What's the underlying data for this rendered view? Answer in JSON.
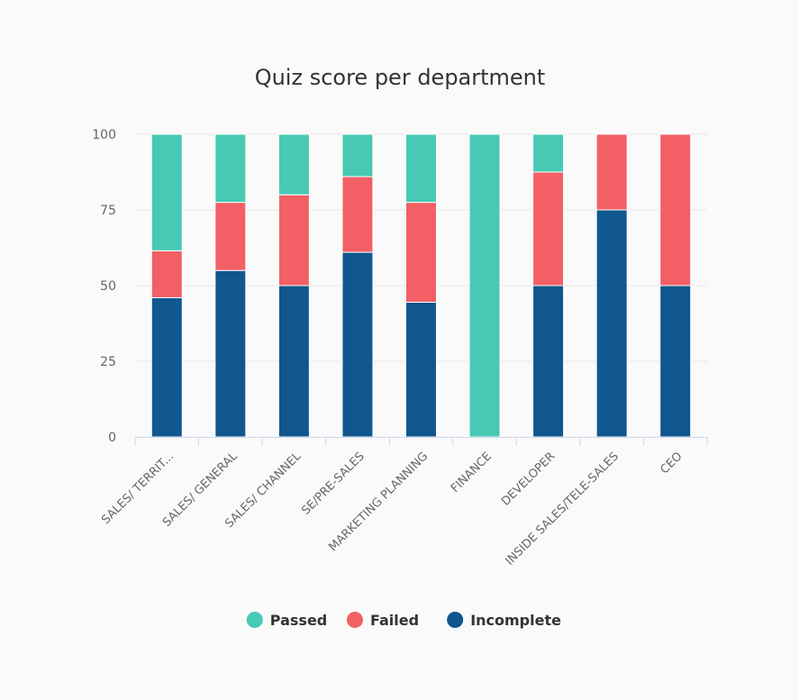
{
  "chart_data": {
    "type": "bar",
    "stacked": true,
    "title": "Quiz score per department",
    "xlabel": "",
    "ylabel": "",
    "ylim": [
      0,
      100
    ],
    "yticks": [
      0,
      25,
      50,
      75,
      100
    ],
    "grid": true,
    "legend_position": "bottom",
    "categories": [
      "SALES/ TERRIT...",
      "SALES/ GENERAL",
      "SALES/ CHANNEL",
      "SE/PRE-SALES",
      "MARKETING PLANNING",
      "FINANCE",
      "DEVELOPER",
      "INSIDE SALES/TELE-SALES",
      "CEO"
    ],
    "series": [
      {
        "name": "Incomplete",
        "color": "#10578f",
        "values": [
          46,
          55,
          50,
          61,
          44.5,
          0,
          50,
          75,
          50
        ]
      },
      {
        "name": "Failed",
        "color": "#f26065",
        "values": [
          15.5,
          22.5,
          30,
          25,
          33,
          0,
          37.5,
          25,
          50
        ]
      },
      {
        "name": "Passed",
        "color": "#48c9b4",
        "values": [
          38.5,
          22.5,
          20,
          14,
          22.5,
          100,
          12.5,
          0,
          0
        ]
      }
    ],
    "legend_order": [
      "Passed",
      "Failed",
      "Incomplete"
    ]
  }
}
